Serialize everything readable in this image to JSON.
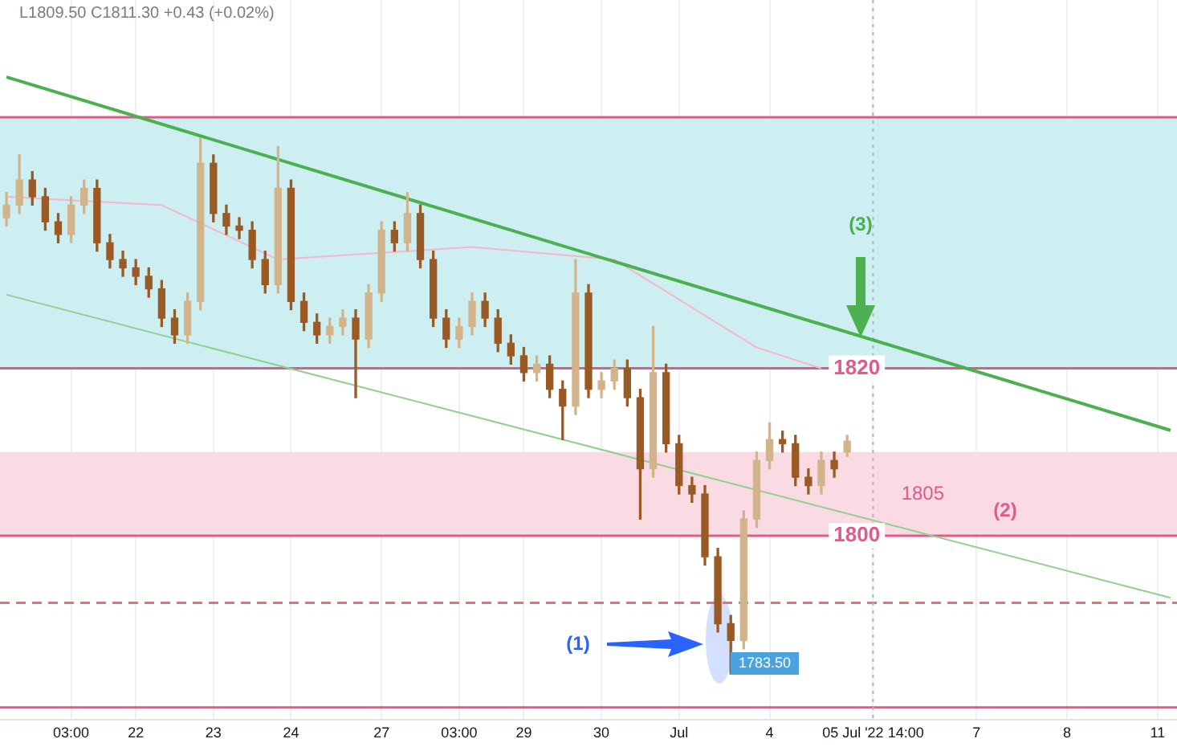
{
  "chart_data": {
    "type": "candlestick",
    "colors": [
      "#d2b48c",
      "#d2b48c",
      "#9a5a26",
      "#9a5a26",
      "#9a5a26",
      "#d2b48c",
      "#d2b48c",
      "#9a5a26",
      "#9a5a26",
      "#9a5a26",
      "#9a5a26",
      "#9a5a26",
      "#9a5a26",
      "#9a5a26",
      "#d2b48c",
      "#d2b48c",
      "#9a5a26",
      "#9a5a26",
      "#9a5a26",
      "#9a5a26",
      "#9a5a26",
      "#d2b48c",
      "#9a5a26",
      "#9a5a26",
      "#9a5a26",
      "#d2b48c",
      "#d2b48c",
      "#9a5a26",
      "#d2b48c",
      "#d2b48c",
      "#9a5a26",
      "#d2b48c",
      "#9a5a26",
      "#9a5a26",
      "#9a5a26",
      "#d2b48c",
      "#d2b48c",
      "#9a5a26",
      "#9a5a26",
      "#9a5a26",
      "#9a5a26",
      "#d2b48c",
      "#9a5a26",
      "#9a5a26",
      "#d2b48c",
      "#9a5a26",
      "#d2b48c",
      "#d2b48c",
      "#9a5a26",
      "#9a5a26",
      "#d2b48c",
      "#9a5a26",
      "#9a5a26",
      "#9a5a26",
      "#9a5a26",
      "#9a5a26",
      "#9a5a26",
      "#d2b48c",
      "#d2b48c",
      "#d2b48c",
      "#9a5a26",
      "#9a5a26",
      "#9a5a26",
      "#d2b48c",
      "#9a5a26",
      "#d2b48c",
      null,
      null,
      null,
      null,
      null,
      null,
      null,
      null,
      null,
      null,
      null,
      null,
      null,
      null,
      null,
      null,
      null,
      null,
      null,
      null,
      null,
      null,
      null,
      null,
      null
    ],
    "categories": [
      null,
      null,
      null,
      null,
      null,
      "03:00",
      null,
      null,
      null,
      null,
      "22",
      null,
      null,
      null,
      null,
      null,
      "23",
      null,
      null,
      null,
      null,
      null,
      "24",
      null,
      null,
      null,
      null,
      null,
      null,
      "27",
      null,
      null,
      null,
      null,
      null,
      "03:00",
      null,
      null,
      null,
      null,
      "29",
      null,
      null,
      null,
      null,
      null,
      "30",
      null,
      null,
      null,
      null,
      null,
      "Jul",
      null,
      null,
      null,
      null,
      null,
      null,
      "4",
      null,
      null,
      null,
      null,
      null,
      null,
      null,
      "05 Jul '22 14:00",
      null,
      null,
      null,
      null,
      null,
      null,
      null,
      "7",
      null,
      null,
      null,
      null,
      null,
      null,
      "8",
      null,
      null,
      null,
      null,
      null,
      null,
      "11",
      null
    ],
    "ohlc": [
      [
        1838,
        1841,
        1837,
        1839.5
      ],
      [
        1839.5,
        1845.5,
        1838.5,
        1842.5
      ],
      [
        1842.5,
        1843.5,
        1839.5,
        1840.5
      ],
      [
        1840.5,
        1841.5,
        1836.5,
        1837.5
      ],
      [
        1837.5,
        1838.5,
        1835,
        1836
      ],
      [
        1836,
        1840.5,
        1835,
        1839.5
      ],
      [
        1839.5,
        1842.5,
        1838.5,
        1841.5
      ],
      [
        1841.5,
        1842.5,
        1834,
        1835
      ],
      [
        1835,
        1836,
        1832,
        1833
      ],
      [
        1833,
        1834,
        1831,
        1832
      ],
      [
        1832,
        1833,
        1830,
        1831
      ],
      [
        1831,
        1832,
        1828.5,
        1829.5
      ],
      [
        1829.5,
        1830.5,
        1825,
        1826
      ],
      [
        1826,
        1827,
        1823,
        1824
      ],
      [
        1824,
        1829,
        1823,
        1828
      ],
      [
        1828,
        1847.5,
        1827,
        1844.5
      ],
      [
        1844.5,
        1845.5,
        1837.5,
        1838.5
      ],
      [
        1838.5,
        1839.5,
        1836,
        1837
      ],
      [
        1837,
        1838,
        1835.5,
        1836.5
      ],
      [
        1836.5,
        1837.5,
        1832,
        1833
      ],
      [
        1833,
        1834,
        1829,
        1830
      ],
      [
        1830,
        1846.5,
        1829,
        1841.5
      ],
      [
        1841.5,
        1842.5,
        1827,
        1828
      ],
      [
        1828,
        1829,
        1824.5,
        1825.5
      ],
      [
        1825.5,
        1826.5,
        1823,
        1824
      ],
      [
        1824,
        1826,
        1823,
        1825
      ],
      [
        1825,
        1827,
        1824,
        1826
      ],
      [
        1826,
        1827,
        1816.5,
        1823.5
      ],
      [
        1823.5,
        1830,
        1822.5,
        1829
      ],
      [
        1829,
        1837.5,
        1828,
        1836.5
      ],
      [
        1836.5,
        1837.5,
        1834,
        1835
      ],
      [
        1835,
        1841,
        1834,
        1838.5
      ],
      [
        1838.5,
        1839.5,
        1832,
        1833
      ],
      [
        1833,
        1834,
        1825,
        1826
      ],
      [
        1826,
        1827,
        1822.5,
        1823.5
      ],
      [
        1823.5,
        1826,
        1822.5,
        1825
      ],
      [
        1825,
        1829,
        1824,
        1828
      ],
      [
        1828,
        1829,
        1825,
        1826
      ],
      [
        1826,
        1827,
        1822,
        1823
      ],
      [
        1823,
        1824,
        1820.5,
        1821.5
      ],
      [
        1821.5,
        1822.5,
        1818.5,
        1819.5
      ],
      [
        1819.5,
        1821.5,
        1818.5,
        1820.5
      ],
      [
        1820.5,
        1821.5,
        1816.5,
        1817.5
      ],
      [
        1817.5,
        1818.5,
        1811.5,
        1815.5
      ],
      [
        1815.5,
        1833,
        1814.5,
        1829
      ],
      [
        1829,
        1830,
        1816.5,
        1817.5
      ],
      [
        1817.5,
        1819.5,
        1816.5,
        1818.5
      ],
      [
        1818.5,
        1821,
        1817.5,
        1820
      ],
      [
        1820,
        1821,
        1815.5,
        1816.5
      ],
      [
        1816.5,
        1817.5,
        1802,
        1808
      ],
      [
        1808,
        1825,
        1807,
        1819.5
      ],
      [
        1819.5,
        1820.5,
        1810,
        1811
      ],
      [
        1811,
        1812,
        1805,
        1806
      ],
      [
        1806,
        1807,
        1804,
        1805
      ],
      [
        1805,
        1806,
        1796.5,
        1797.5
      ],
      [
        1797.5,
        1798.5,
        1788.5,
        1789.5
      ],
      [
        1789.5,
        1790.5,
        1783.5,
        1787.5
      ],
      [
        1787.5,
        1803,
        1786.5,
        1802
      ],
      [
        1802,
        1810,
        1801,
        1809
      ],
      [
        1809,
        1813.5,
        1808,
        1811.5
      ],
      [
        1811.5,
        1812.5,
        1810,
        1811
      ],
      [
        1811,
        1812,
        1806,
        1807
      ],
      [
        1807,
        1808,
        1805,
        1806
      ],
      [
        1806,
        1810,
        1805,
        1809
      ],
      [
        1809,
        1810,
        1807,
        1808
      ],
      [
        1810,
        1812,
        1809.5,
        1811.3
      ],
      null,
      null,
      null,
      null,
      null,
      null,
      null,
      null,
      null,
      null,
      null,
      null,
      null,
      null,
      null,
      null,
      null,
      null,
      null,
      null,
      null,
      null,
      null,
      null,
      null
    ],
    "series": [
      {
        "type": "line",
        "color": "#4caf50",
        "values": [
          1854.8,
          null,
          null,
          null,
          null,
          null,
          null,
          null,
          null,
          null,
          null,
          null,
          null,
          null,
          null,
          null,
          null,
          null,
          null,
          null,
          null,
          null,
          null,
          null,
          null,
          null,
          null,
          null,
          null,
          null,
          null,
          null,
          null,
          null,
          null,
          null,
          null,
          null,
          null,
          null,
          null,
          null,
          null,
          null,
          null,
          null,
          null,
          null,
          null,
          null,
          null,
          null,
          null,
          null,
          null,
          null,
          null,
          null,
          null,
          null,
          null,
          null,
          null,
          null,
          null,
          null,
          null,
          null,
          null,
          null,
          null,
          null,
          null,
          null,
          null,
          null,
          null,
          null,
          null,
          null,
          null,
          null,
          null,
          null,
          null,
          null,
          null,
          null,
          null,
          null,
          1812.6
        ]
      },
      {
        "type": "line",
        "color": "#8fd18f",
        "values": [
          1828.8,
          null,
          null,
          null,
          null,
          null,
          null,
          null,
          null,
          null,
          null,
          null,
          null,
          null,
          null,
          null,
          null,
          null,
          null,
          null,
          null,
          null,
          null,
          null,
          null,
          null,
          null,
          null,
          null,
          null,
          null,
          null,
          null,
          null,
          null,
          null,
          null,
          null,
          null,
          null,
          null,
          null,
          null,
          null,
          null,
          null,
          null,
          null,
          null,
          null,
          null,
          null,
          null,
          null,
          null,
          null,
          null,
          null,
          null,
          null,
          null,
          null,
          null,
          null,
          null,
          null,
          null,
          null,
          null,
          null,
          null,
          null,
          null,
          null,
          null,
          null,
          null,
          null,
          null,
          null,
          null,
          null,
          null,
          null,
          null,
          null,
          null,
          null,
          null,
          null,
          1792.6
        ]
      },
      {
        "type": "line",
        "color": "#f4b6c8",
        "values": [
          1840.5,
          null,
          null,
          null,
          null,
          null,
          null,
          null,
          null,
          null,
          null,
          null,
          1839.5,
          null,
          null,
          null,
          null,
          null,
          null,
          null,
          null,
          1833,
          null,
          null,
          null,
          null,
          null,
          null,
          null,
          null,
          null,
          null,
          null,
          null,
          null,
          null,
          1834.5,
          null,
          null,
          null,
          null,
          null,
          null,
          null,
          null,
          null,
          null,
          1833,
          null,
          null,
          null,
          null,
          null,
          null,
          null,
          null,
          null,
          null,
          1822.5,
          null,
          null,
          null,
          null,
          1820,
          null,
          null,
          null,
          null,
          null,
          null,
          null,
          null,
          null,
          null,
          null,
          null,
          null,
          null,
          null,
          null,
          null,
          null,
          null,
          null,
          null,
          null,
          null,
          null,
          null,
          null,
          null
        ]
      }
    ],
    "ylim": [
      1778,
      1864
    ],
    "tick_labels": "x",
    "grid": "x",
    "legend": false,
    "bands": [
      {
        "axis": "y",
        "from": 1820,
        "to": 1850,
        "color": "#cdeff2"
      },
      {
        "axis": "y",
        "from": 1800,
        "to": 1810,
        "color": "#fadbe3",
        "label": "1805"
      }
    ],
    "ref_lines": [
      {
        "axis": "y",
        "value": 1850,
        "color": "#e05a8a"
      },
      {
        "axis": "y",
        "value": 1820,
        "label": "1820",
        "color": "#e05a8a"
      },
      {
        "axis": "y",
        "value": 1800,
        "label": "1800",
        "color": "#e05a8a"
      },
      {
        "axis": "y",
        "value": 1779.5,
        "color": "#e05a8a"
      },
      {
        "axis": "y",
        "value": 1792,
        "color": "#e57373",
        "line_style": "dashed"
      },
      {
        "axis": "x",
        "value": "05 Jul '22 14:00",
        "color": "#b0b4bd",
        "line_style": "dotted"
      }
    ],
    "annotations": [
      "L1809.50 C1811.30 +0.43 (+0.02%)",
      "1783.50",
      "(1)",
      "(2)",
      "(3)"
    ]
  }
}
